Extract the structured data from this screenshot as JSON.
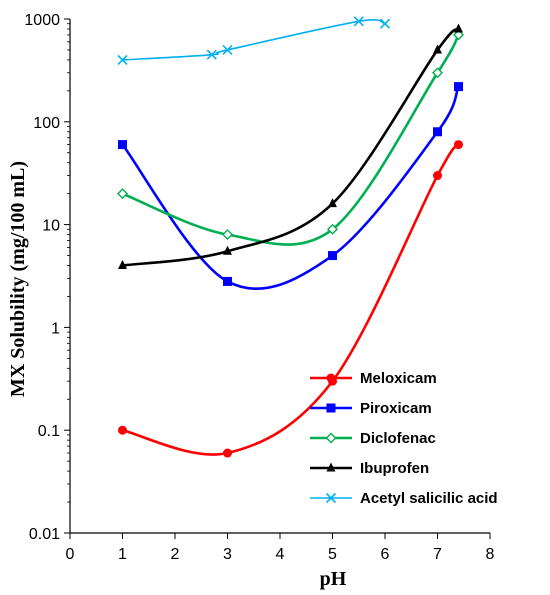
{
  "chart_data": {
    "type": "line",
    "title": "",
    "xlabel": "pH",
    "ylabel": "MX Solubility (mg/100 mL)",
    "xlim": [
      0,
      8
    ],
    "ylim": [
      0.01,
      1000
    ],
    "yscale": "log",
    "xticks": [
      "0",
      "1",
      "2",
      "3",
      "4",
      "5",
      "6",
      "7",
      "8"
    ],
    "yticks": [
      {
        "value": 0.01,
        "label": "0.01"
      },
      {
        "value": 0.1,
        "label": "0.1"
      },
      {
        "value": 1,
        "label": "1"
      },
      {
        "value": 10,
        "label": "10"
      },
      {
        "value": 100,
        "label": "100"
      },
      {
        "value": 1000,
        "label": "1000"
      }
    ],
    "grid": false,
    "legend_position": "bottom-right",
    "series": [
      {
        "name": "Meloxicam",
        "color": "#ff0000",
        "marker": "circle",
        "x": [
          1,
          3,
          5,
          7,
          7.4
        ],
        "y": [
          0.1,
          0.06,
          0.3,
          30,
          60
        ]
      },
      {
        "name": "Piroxicam",
        "color": "#0000ff",
        "marker": "square",
        "x": [
          1,
          3,
          5,
          7,
          7.4
        ],
        "y": [
          60,
          2.8,
          5,
          80,
          220
        ]
      },
      {
        "name": "Diclofenac",
        "color": "#00b050",
        "marker": "diamond-open",
        "x": [
          1,
          3,
          5,
          7,
          7.4
        ],
        "y": [
          20,
          8,
          9,
          300,
          700
        ]
      },
      {
        "name": "Ibuprofen",
        "color": "#000000",
        "marker": "triangle",
        "x": [
          1,
          3,
          5,
          7,
          7.4
        ],
        "y": [
          4,
          5.5,
          16,
          500,
          800
        ]
      },
      {
        "name": "Acetyl salicilic acid",
        "color": "#00b0f0",
        "marker": "x",
        "x": [
          1,
          2.7,
          3,
          5.5,
          6
        ],
        "y": [
          400,
          450,
          500,
          950,
          900
        ]
      }
    ]
  }
}
